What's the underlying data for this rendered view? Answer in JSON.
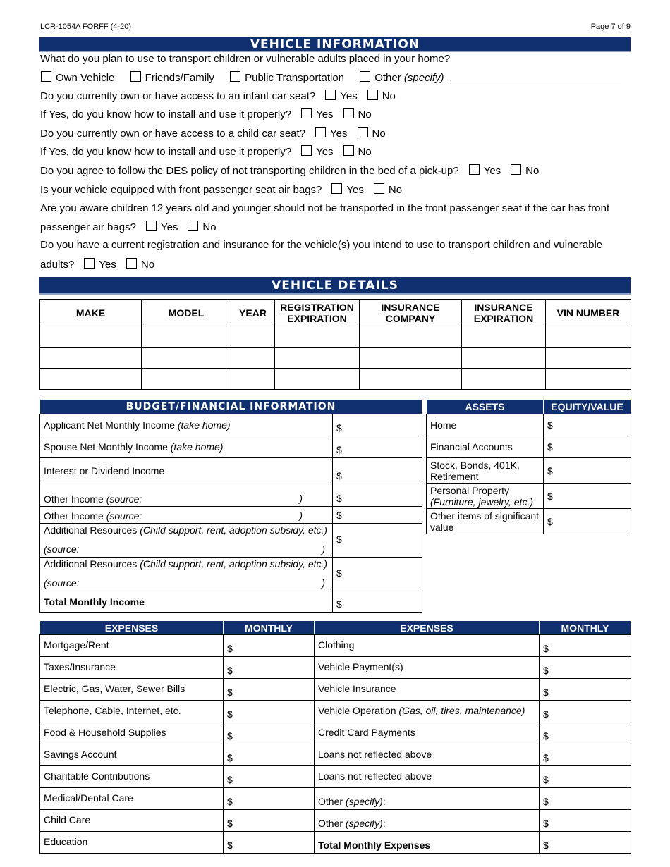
{
  "header": {
    "form_id": "LCR-1054A FORFF (4-20)",
    "page": "Page 7 of 9"
  },
  "vehicle_info": {
    "title": "VEHICLE INFORMATION",
    "q_transport": "What do you plan to use to transport children or vulnerable adults placed in your home?",
    "transport_options": [
      "Own Vehicle",
      "Friends/Family",
      "Public Transportation",
      "Other"
    ],
    "other_specify": "(specify)",
    "yes": "Yes",
    "no": "No",
    "questions": [
      "Do you currently own or have access to an infant car seat?",
      "If Yes, do you know how to install and use it properly?",
      "Do you currently own or have access to a child car seat?",
      "If Yes, do you know how to install and use it properly?",
      "Do you agree to follow the DES policy of not transporting children in the bed of a pick-up?",
      "Is your vehicle equipped with front passenger seat air bags?"
    ],
    "q_airbag_l1": "Are you aware children 12 years old and younger should not be transported in the front passenger seat if the car has front",
    "q_airbag_l2": "passenger air bags?",
    "q_reg_l1": "Do you have a current registration and insurance for the vehicle(s) you intend to use to transport children and vulnerable",
    "q_reg_l2": "adults?"
  },
  "vehicle_details": {
    "title": "VEHICLE DETAILS",
    "columns": [
      "MAKE",
      "MODEL",
      "YEAR",
      "REGISTRATION EXPIRATION",
      "INSURANCE COMPANY",
      "INSURANCE EXPIRATION",
      "VIN NUMBER"
    ]
  },
  "budget": {
    "title": "BUDGET/FINANCIAL INFORMATION",
    "dollar": "$",
    "rows": [
      {
        "label": "Applicant Net Monthly Income ",
        "italic": "(take home)"
      },
      {
        "label": "Spouse Net Monthly Income ",
        "italic": "(take home)"
      },
      {
        "label": "Interest or Dividend Income",
        "italic": ""
      },
      {
        "label": "Other Income ",
        "italic": "(source:"
      },
      {
        "label": "Other Income ",
        "italic": "(source:"
      },
      {
        "label": "Additional Resources ",
        "italic": "(Child support, rent, adoption subsidy, etc.)",
        "source": "(source:"
      },
      {
        "label": "Additional Resources ",
        "italic": "(Child support, rent, adoption subsidy, etc.)",
        "source": "(source:"
      }
    ],
    "close_paren": ")",
    "total": "Total Monthly Income"
  },
  "assets": {
    "headers": [
      "ASSETS",
      "EQUITY/VALUE"
    ],
    "rows": [
      {
        "label": "Home"
      },
      {
        "label": "Financial Accounts"
      },
      {
        "label": "Stock, Bonds, 401K, Retirement"
      },
      {
        "label": "Personal Property",
        "italic": "(Furniture, jewelry, etc.)"
      },
      {
        "label": "Other items of significant value"
      }
    ]
  },
  "expenses": {
    "headers": [
      "EXPENSES",
      "MONTHLY",
      "EXPENSES",
      "MONTHLY"
    ],
    "left": [
      "Mortgage/Rent",
      "Taxes/Insurance",
      "Electric, Gas, Water, Sewer Bills",
      "Telephone, Cable, Internet, etc.",
      "Food & Household Supplies",
      "Savings Account",
      "Charitable Contributions",
      "Medical/Dental Care",
      "Child Care",
      "Education"
    ],
    "right": [
      {
        "label": "Clothing"
      },
      {
        "label": "Vehicle Payment(s)"
      },
      {
        "label": "Vehicle Insurance"
      },
      {
        "label": "Vehicle Operation ",
        "italic": "(Gas, oil, tires, maintenance)"
      },
      {
        "label": "Credit Card Payments"
      },
      {
        "label": "Loans not reflected above"
      },
      {
        "label": "Loans not reflected above"
      },
      {
        "label": "Other ",
        "italic": "(specify)",
        "suffix": ":"
      },
      {
        "label": "Other ",
        "italic": "(specify)",
        "suffix": ":"
      },
      {
        "label": "Total Monthly Expenses",
        "bold": true
      }
    ]
  }
}
